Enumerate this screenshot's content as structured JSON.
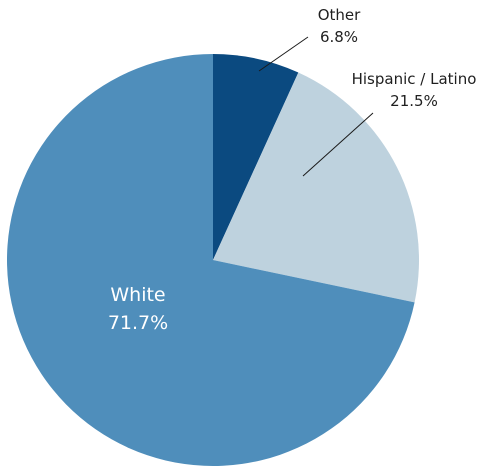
{
  "chart_data": {
    "type": "pie",
    "title": "",
    "start_angle_deg": 0,
    "direction": "clockwise",
    "slices": [
      {
        "name": "Other",
        "value": 6.8,
        "display": "6.8%",
        "color": "#0b4a80",
        "label_placement": "outside"
      },
      {
        "name": "Hispanic / Latino",
        "value": 21.5,
        "display": "21.5%",
        "color": "#bed2de",
        "label_placement": "outside"
      },
      {
        "name": "White",
        "value": 71.7,
        "display": "71.7%",
        "color": "#4f8ebb",
        "label_placement": "inside"
      }
    ]
  }
}
